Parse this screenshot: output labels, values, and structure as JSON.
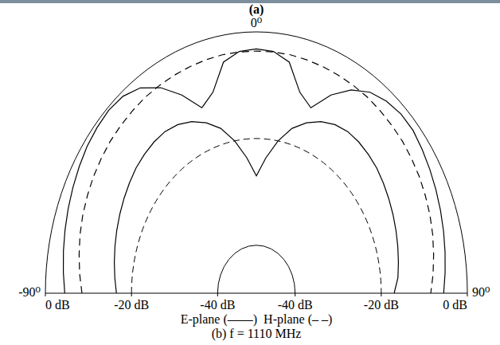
{
  "chart_data": {
    "type": "polar",
    "title": "(b) f = 1110 MHz",
    "annotations": [
      "(a)"
    ],
    "xlim": [
      -90,
      90
    ],
    "xticks": [
      {
        "value": -90,
        "label": "-90⁰"
      },
      {
        "value": 0,
        "label": "0⁰"
      },
      {
        "value": 90,
        "label": "90⁰"
      }
    ],
    "ylim": [
      -49,
      0
    ],
    "yticks": [
      {
        "value": -40,
        "label": "-40 dB"
      },
      {
        "value": -20,
        "label": "-20 dB"
      },
      {
        "value": 0,
        "label": "0 dB"
      }
    ],
    "grid": true,
    "legend": "bottom",
    "series": [
      {
        "name": "E-plane (——)",
        "color": "#000000",
        "line_style": "solid",
        "x": [
          -90,
          -85,
          -80,
          -75,
          -70,
          -65,
          -60,
          -55,
          -50,
          -45,
          -40,
          -35,
          -30,
          -25,
          -20,
          -15,
          -10,
          -5,
          0,
          5,
          10,
          15,
          20,
          25,
          30,
          35,
          40,
          45,
          50,
          55,
          60,
          65,
          70,
          75,
          80,
          85,
          90,
          90,
          -90,
          -85,
          -80,
          -75,
          -70,
          -65,
          -60,
          -55,
          -50,
          -45,
          -40,
          -35,
          -30,
          -25,
          -20,
          -15,
          -10,
          -5,
          0,
          5,
          10,
          15,
          20,
          25,
          30,
          35,
          40,
          45,
          50,
          55,
          60,
          65,
          70,
          75,
          80,
          85,
          90
        ],
        "values": [
          -4.5,
          -4,
          -3.5,
          -3,
          -2.5,
          -2,
          -1.5,
          -1,
          -0.7,
          -0.5,
          -0.8,
          -2,
          -4.5,
          -8,
          -12,
          -10,
          -5,
          -3.5,
          -3.2,
          -3.5,
          -5,
          -10,
          -12,
          -8,
          -5,
          -3,
          -2,
          -1.5,
          -1.5,
          -2,
          -2.5,
          -3,
          -3.5,
          -4,
          -4.5,
          -5,
          -5.5,
          null,
          -16.5,
          -16,
          -15.5,
          -15,
          -14.5,
          -14,
          -13.5,
          -13,
          -12.5,
          -12.2,
          -12,
          -12,
          -12.5,
          -13.5,
          -15,
          -17,
          -20,
          -23.5,
          -27,
          -23.5,
          -20,
          -17,
          -15,
          -13.5,
          -12.5,
          -12,
          -12,
          -12.2,
          -12.5,
          -13,
          -13.5,
          -14,
          -14.5,
          -15,
          -15.5,
          -16,
          -17
        ]
      },
      {
        "name": "H-plane (– –)",
        "color": "#000000",
        "line_style": "dashed",
        "x": [
          -90,
          -85,
          -80,
          -75,
          -70,
          -65,
          -60,
          -55,
          -50,
          -45,
          -40,
          -35,
          -30,
          -25,
          -20,
          -15,
          -10,
          -5,
          0,
          5,
          10,
          15,
          20,
          25,
          30,
          35,
          40,
          45,
          50,
          55,
          60,
          65,
          70,
          75,
          80,
          85,
          90
        ],
        "values": [
          -8.5,
          -7.8,
          -7.2,
          -6.6,
          -6.1,
          -5.7,
          -5.3,
          -5,
          -4.7,
          -4.5,
          -4.3,
          -4.1,
          -4,
          -3.9,
          -3.8,
          -3.7,
          -3.6,
          -3.6,
          -3.6,
          -3.6,
          -3.6,
          -3.7,
          -3.8,
          -3.9,
          -4,
          -4.1,
          -4.3,
          -4.5,
          -4.7,
          -5,
          -5.3,
          -5.7,
          -6.1,
          -6.6,
          -7.2,
          -7.8,
          -8.5
        ]
      }
    ]
  }
}
